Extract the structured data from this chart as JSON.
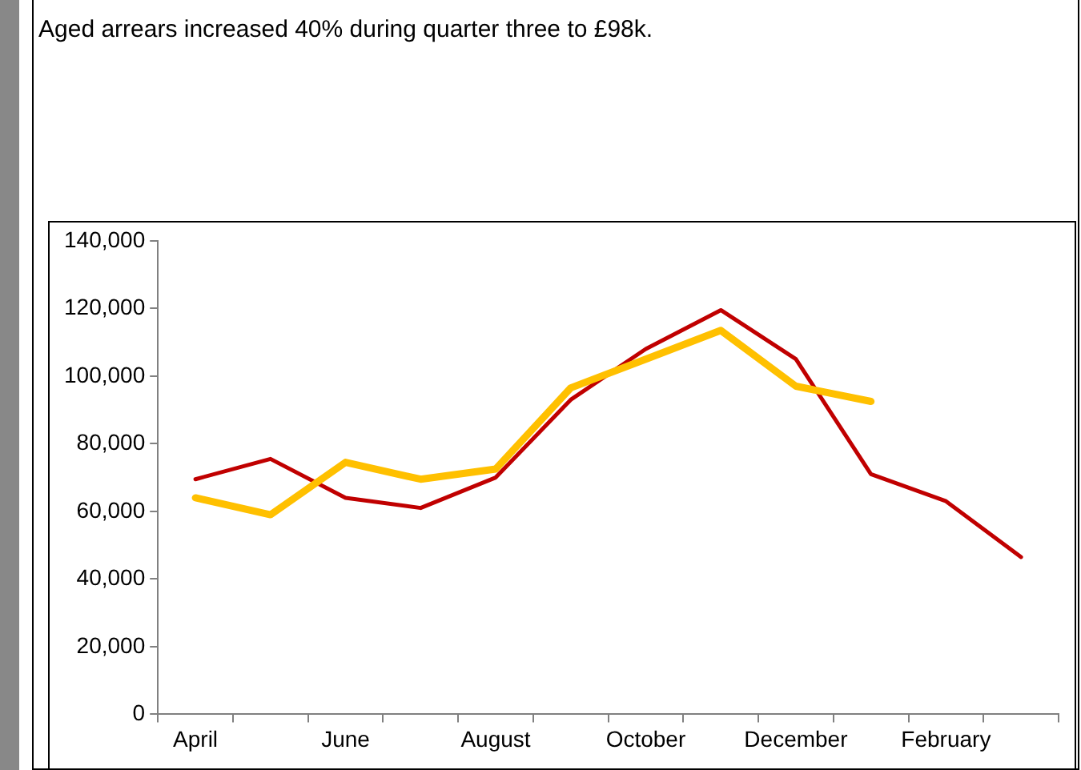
{
  "chart_data": {
    "type": "line",
    "title": "Aged arrears increased 40% during quarter three to £98k.",
    "categories": [
      "April",
      null,
      "June",
      null,
      "August",
      null,
      "October",
      null,
      "December",
      null,
      "February",
      null
    ],
    "series": [
      {
        "color": "#ffc000",
        "values": [
          64000,
          59000,
          74500,
          69500,
          72500,
          96500,
          105000,
          113500,
          97000,
          92500,
          null,
          null
        ]
      },
      {
        "color": "#c00000",
        "values": [
          69500,
          75500,
          64000,
          61000,
          70000,
          93000,
          108000,
          119500,
          105000,
          71000,
          63000,
          46500
        ]
      }
    ],
    "ylim": [
      0,
      140000
    ],
    "yticks": [
      {
        "value": 0,
        "label": "0"
      },
      {
        "value": 20000,
        "label": "20,000"
      },
      {
        "value": 40000,
        "label": "40,000"
      },
      {
        "value": 60000,
        "label": "60,000"
      },
      {
        "value": 80000,
        "label": "80,000"
      },
      {
        "value": 100000,
        "label": "100,000"
      },
      {
        "value": 120000,
        "label": "120,000"
      },
      {
        "value": 140000,
        "label": "140,000"
      }
    ],
    "grid": false,
    "legend": false,
    "marker": "none",
    "line_style": "solid"
  }
}
